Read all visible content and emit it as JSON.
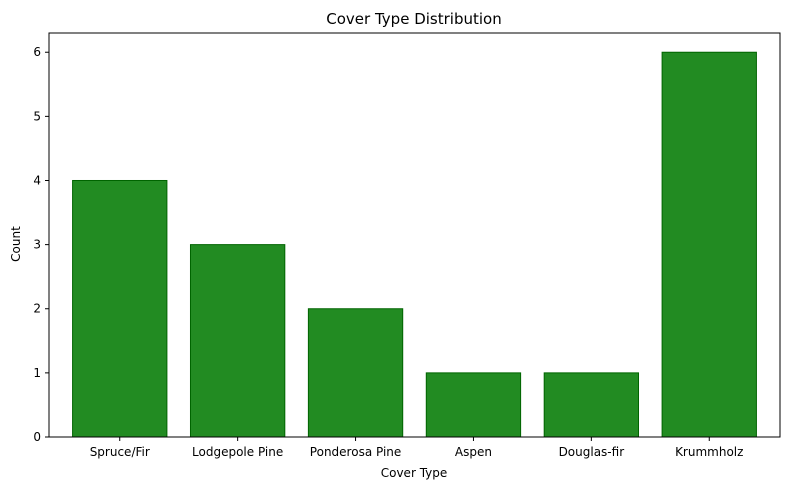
{
  "chart_data": {
    "type": "bar",
    "title": "Cover Type Distribution",
    "xlabel": "Cover Type",
    "ylabel": "Count",
    "categories": [
      "Spruce/Fir",
      "Lodgepole Pine",
      "Ponderosa Pine",
      "Aspen",
      "Douglas-fir",
      "Krummholz"
    ],
    "values": [
      4,
      3,
      2,
      1,
      1,
      6
    ],
    "ylim": [
      0,
      6.3
    ],
    "yticks": [
      0,
      1,
      2,
      3,
      4,
      5,
      6
    ],
    "grid": false,
    "legend": "none",
    "bar_color": "#228b22",
    "bar_edge_color": "#006400"
  }
}
